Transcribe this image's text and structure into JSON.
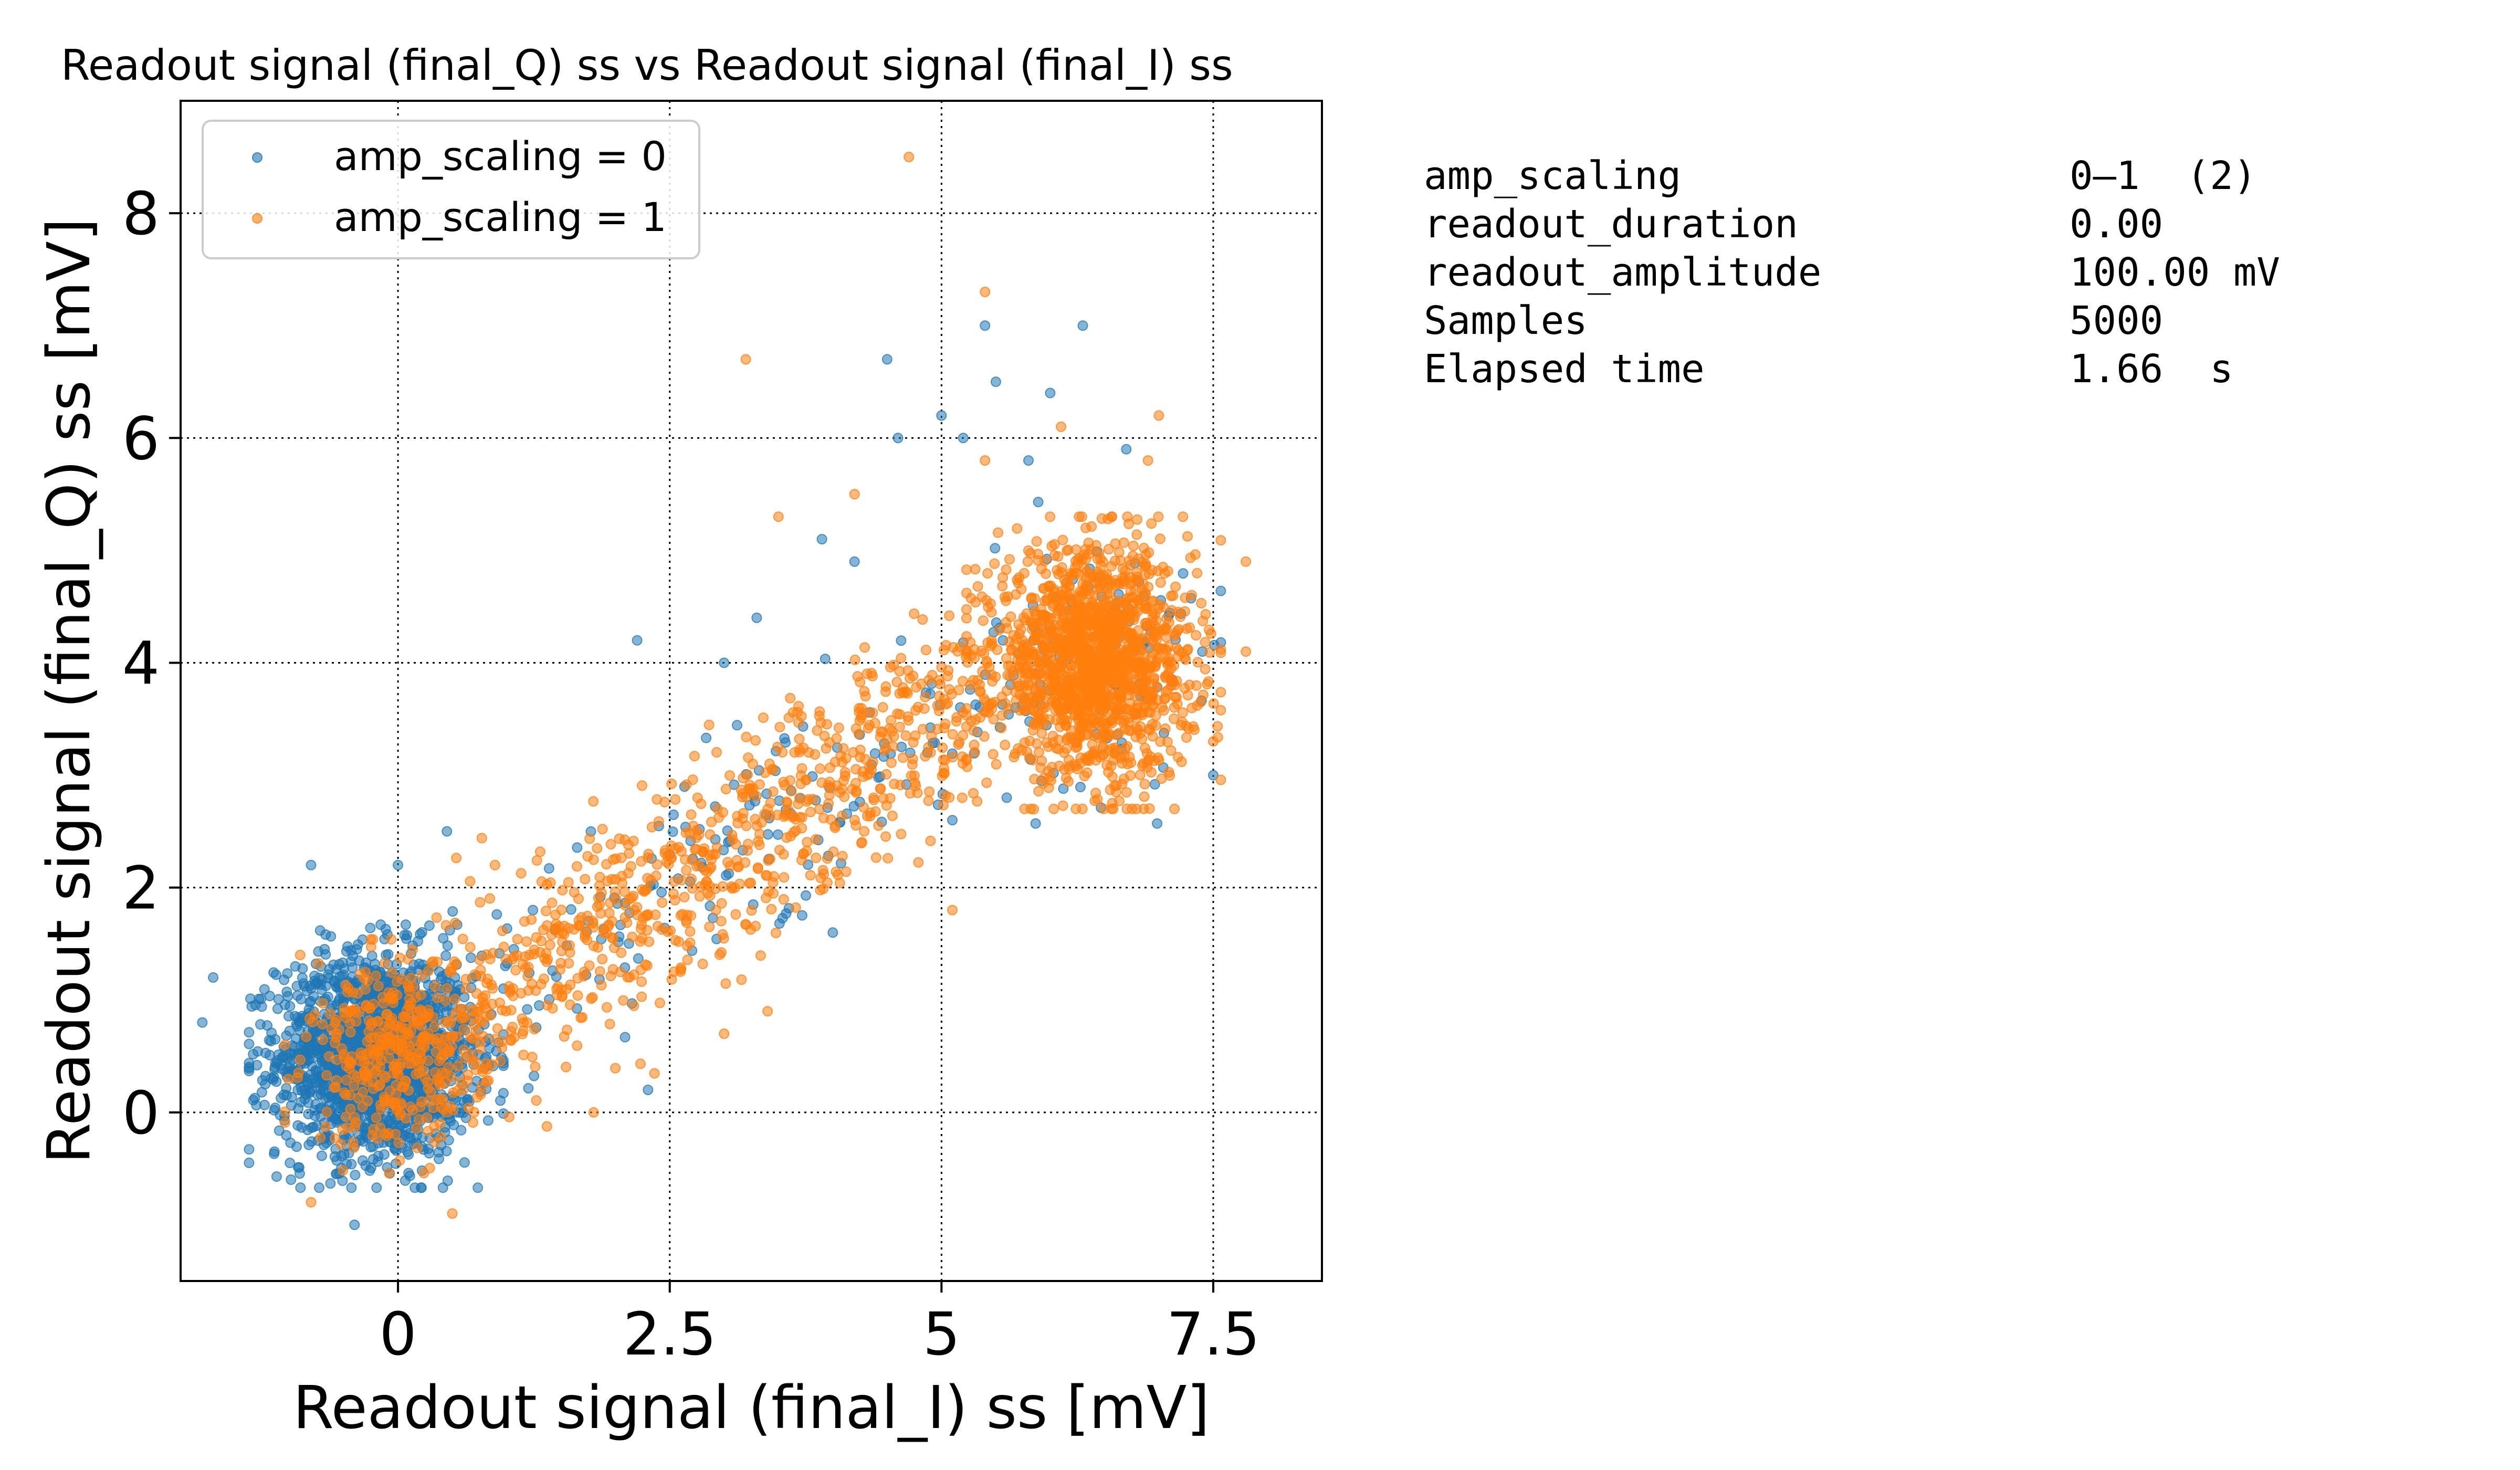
{
  "chart_data": {
    "type": "scatter",
    "title": "Readout signal (final_Q) ss vs Readout signal (final_I) ss",
    "xlabel": "Readout signal (final_I) ss [mV]",
    "ylabel": "Readout signal (final_Q) ss [mV]",
    "xlim": [
      -2.0,
      8.5
    ],
    "ylim": [
      -1.5,
      9.0
    ],
    "xticks": [
      0,
      2.5,
      5,
      7.5
    ],
    "xtick_labels": [
      "0",
      "2.5",
      "5",
      "7.5"
    ],
    "yticks": [
      0,
      2,
      4,
      6,
      8
    ],
    "ytick_labels": [
      "0",
      "2",
      "4",
      "6",
      "8"
    ],
    "grid": true,
    "legend": "top-left",
    "series": [
      {
        "name": "amp_scaling = 0",
        "color": "#1f77b4",
        "clusters": [
          {
            "center": [
              -0.2,
              0.5
            ],
            "spread": [
              0.45,
              0.45
            ],
            "count": 1800
          },
          {
            "center": [
              6.4,
              4.0
            ],
            "spread": [
              0.45,
              0.55
            ],
            "count": 140
          },
          {
            "center": [
              3.0,
              2.2
            ],
            "spread": [
              1.5,
              0.9
            ],
            "count": 160
          }
        ],
        "outliers": [
          [
            -1.8,
            0.8
          ],
          [
            -1.7,
            1.2
          ],
          [
            -0.8,
            2.2
          ],
          [
            0.0,
            2.2
          ],
          [
            0.45,
            2.5
          ],
          [
            2.2,
            4.2
          ],
          [
            3.0,
            4.0
          ],
          [
            3.3,
            4.4
          ],
          [
            3.9,
            5.1
          ],
          [
            4.2,
            4.9
          ],
          [
            4.5,
            6.7
          ],
          [
            4.6,
            6.0
          ],
          [
            5.0,
            6.2
          ],
          [
            5.2,
            6.0
          ],
          [
            5.5,
            6.5
          ],
          [
            5.4,
            7.0
          ],
          [
            6.0,
            6.4
          ],
          [
            6.3,
            7.0
          ],
          [
            5.8,
            5.8
          ],
          [
            6.7,
            5.9
          ],
          [
            2.3,
            0.2
          ],
          [
            -0.4,
            -1.0
          ],
          [
            4.0,
            1.6
          ],
          [
            5.1,
            2.6
          ],
          [
            5.6,
            2.8
          ],
          [
            7.4,
            4.1
          ],
          [
            7.5,
            3.0
          ]
        ]
      },
      {
        "name": "amp_scaling = 1",
        "color": "#ff7f0e",
        "clusters": [
          {
            "center": [
              6.4,
              4.0
            ],
            "spread": [
              0.45,
              0.5
            ],
            "count": 1500
          },
          {
            "center": [
              0.0,
              0.5
            ],
            "spread": [
              0.4,
              0.4
            ],
            "count": 400
          },
          {
            "center": [
              2.8,
              2.3
            ],
            "spread": [
              1.6,
              1.0
            ],
            "count": 800
          }
        ],
        "outliers": [
          [
            4.7,
            8.5
          ],
          [
            5.4,
            7.3
          ],
          [
            3.2,
            6.7
          ],
          [
            3.5,
            5.3
          ],
          [
            4.2,
            5.5
          ],
          [
            7.8,
            4.9
          ],
          [
            7.8,
            4.1
          ],
          [
            7.5,
            3.3
          ],
          [
            -0.8,
            -0.8
          ],
          [
            0.5,
            -0.9
          ],
          [
            3.0,
            0.7
          ],
          [
            3.4,
            0.9
          ],
          [
            5.1,
            1.8
          ],
          [
            -0.9,
            1.4
          ],
          [
            1.8,
            0.0
          ],
          [
            5.4,
            5.8
          ],
          [
            6.1,
            6.1
          ],
          [
            7.0,
            6.2
          ],
          [
            6.9,
            5.8
          ]
        ]
      }
    ]
  },
  "info_panel": {
    "rows": [
      {
        "key": "amp_scaling",
        "value": "0—1  (2)"
      },
      {
        "key": "readout_duration",
        "value": "0.00"
      },
      {
        "key": "readout_amplitude",
        "value": "100.00 mV"
      },
      {
        "key": "Samples",
        "value": "5000"
      },
      {
        "key": "Elapsed time",
        "value": "1.66  s"
      }
    ]
  }
}
